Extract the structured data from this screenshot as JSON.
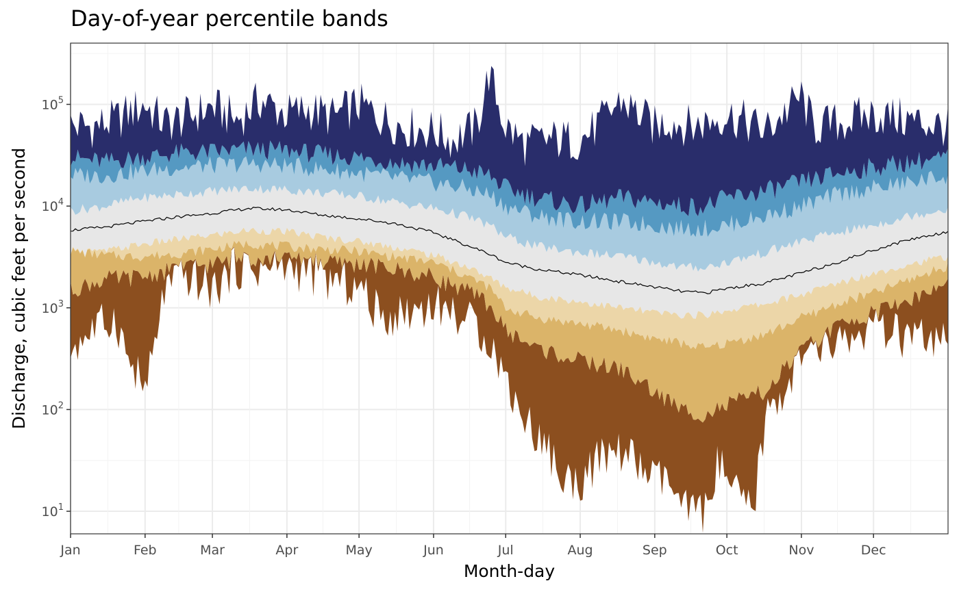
{
  "chart_data": {
    "type": "area",
    "title": "Day-of-year percentile bands",
    "xlabel": "Month-day",
    "ylabel": "Discharge, cubic feet per second",
    "yscale": "log10",
    "ylim": [
      6,
      400000
    ],
    "xlim": [
      1,
      366
    ],
    "grid": true,
    "legend": "none",
    "x_ticks": [
      {
        "day": 1,
        "label": "Jan"
      },
      {
        "day": 32,
        "label": "Feb"
      },
      {
        "day": 60,
        "label": "Mar"
      },
      {
        "day": 91,
        "label": "Apr"
      },
      {
        "day": 121,
        "label": "May"
      },
      {
        "day": 152,
        "label": "Jun"
      },
      {
        "day": 182,
        "label": "Jul"
      },
      {
        "day": 213,
        "label": "Aug"
      },
      {
        "day": 244,
        "label": "Sep"
      },
      {
        "day": 274,
        "label": "Oct"
      },
      {
        "day": 305,
        "label": "Nov"
      },
      {
        "day": 335,
        "label": "Dec"
      }
    ],
    "y_ticks": [
      {
        "value": 10,
        "base": "10",
        "exp": "1"
      },
      {
        "value": 100,
        "base": "10",
        "exp": "2"
      },
      {
        "value": 1000,
        "base": "10",
        "exp": "3"
      },
      {
        "value": 10000,
        "base": "10",
        "exp": "4"
      },
      {
        "value": 100000,
        "base": "10",
        "exp": "5"
      }
    ],
    "band_colors": {
      "min_p05": "#8c4f1f",
      "p05_p10": "#dbb469",
      "p10_p25": "#ecd6a8",
      "p25_p75": "#e7e7e7",
      "p75_p90": "#a8cbe0",
      "p90_p95": "#5599c2",
      "p95_max": "#292d6b"
    },
    "median_color": "#000000",
    "series": [
      {
        "name": "Max",
        "day": [
          1,
          10,
          20,
          30,
          32,
          40,
          50,
          60,
          70,
          80,
          91,
          100,
          110,
          121,
          130,
          140,
          152,
          160,
          170,
          175,
          182,
          190,
          200,
          213,
          220,
          230,
          244,
          250,
          260,
          274,
          280,
          290,
          305,
          310,
          320,
          335,
          350,
          366
        ],
        "values": [
          62000,
          60000,
          70000,
          95000,
          100000,
          65000,
          75000,
          95000,
          70000,
          110000,
          80000,
          90000,
          75000,
          100000,
          75000,
          60000,
          55000,
          45000,
          60000,
          200000,
          60000,
          40000,
          45000,
          45000,
          60000,
          110000,
          60000,
          70000,
          60000,
          80000,
          70000,
          55000,
          120000,
          60000,
          65000,
          80000,
          70000,
          60000
        ]
      },
      {
        "name": "P95",
        "day": [
          1,
          15,
          30,
          45,
          60,
          75,
          91,
          105,
          121,
          135,
          152,
          165,
          175,
          182,
          195,
          213,
          230,
          244,
          255,
          265,
          274,
          290,
          305,
          320,
          335,
          350,
          366
        ],
        "values": [
          30000,
          27000,
          30000,
          33000,
          34000,
          36000,
          35000,
          32000,
          30000,
          27000,
          25000,
          23000,
          20000,
          15000,
          12000,
          10000,
          12000,
          11000,
          10000,
          10000,
          12000,
          14000,
          17000,
          21000,
          24000,
          27000,
          30000
        ]
      },
      {
        "name": "P90",
        "day": [
          1,
          15,
          30,
          45,
          60,
          75,
          91,
          105,
          121,
          135,
          152,
          165,
          175,
          182,
          195,
          213,
          230,
          244,
          255,
          265,
          274,
          290,
          305,
          320,
          335,
          350,
          366
        ],
        "values": [
          20000,
          20000,
          22000,
          24000,
          25000,
          26000,
          25000,
          23000,
          21000,
          19000,
          17000,
          15000,
          13000,
          10000,
          8000,
          7000,
          7000,
          6500,
          6000,
          6000,
          6500,
          8000,
          10000,
          13000,
          15000,
          17000,
          20000
        ]
      },
      {
        "name": "P75",
        "day": [
          1,
          15,
          30,
          45,
          60,
          75,
          91,
          105,
          121,
          135,
          152,
          165,
          175,
          182,
          195,
          213,
          230,
          244,
          255,
          265,
          274,
          290,
          305,
          320,
          335,
          350,
          366
        ],
        "values": [
          9000,
          10000,
          12000,
          13000,
          14000,
          15000,
          14500,
          13500,
          12500,
          11000,
          9500,
          8000,
          6500,
          5000,
          4000,
          3500,
          3200,
          2800,
          2500,
          2500,
          2800,
          3500,
          4500,
          5500,
          6500,
          8000,
          9500
        ]
      },
      {
        "name": "Median",
        "day": [
          1,
          15,
          30,
          45,
          60,
          75,
          91,
          105,
          121,
          135,
          152,
          165,
          175,
          182,
          195,
          213,
          230,
          244,
          255,
          265,
          274,
          290,
          305,
          320,
          335,
          350,
          366
        ],
        "values": [
          5800,
          6200,
          7000,
          7800,
          8500,
          9500,
          9200,
          8200,
          7500,
          6800,
          5500,
          4200,
          3400,
          2800,
          2400,
          2100,
          1800,
          1600,
          1450,
          1400,
          1550,
          1750,
          2200,
          2800,
          3700,
          4700,
          5600
        ]
      },
      {
        "name": "P25",
        "day": [
          1,
          15,
          30,
          45,
          60,
          75,
          91,
          105,
          121,
          135,
          152,
          165,
          175,
          182,
          195,
          213,
          230,
          244,
          255,
          265,
          274,
          290,
          305,
          320,
          335,
          350,
          366
        ],
        "values": [
          3200,
          3600,
          4200,
          4700,
          5200,
          5800,
          5600,
          5000,
          4500,
          4000,
          3300,
          2600,
          2000,
          1600,
          1300,
          1150,
          1000,
          900,
          850,
          850,
          950,
          1100,
          1350,
          1750,
          2200,
          2700,
          3200
        ]
      },
      {
        "name": "P10",
        "day": [
          1,
          15,
          30,
          45,
          60,
          75,
          91,
          105,
          121,
          135,
          152,
          165,
          175,
          182,
          195,
          213,
          230,
          244,
          255,
          265,
          274,
          290,
          305,
          320,
          335,
          350,
          366
        ],
        "values": [
          3600,
          3300,
          3200,
          3400,
          3800,
          4300,
          4000,
          3800,
          3600,
          3200,
          2800,
          2100,
          1600,
          1000,
          800,
          700,
          600,
          500,
          450,
          400,
          450,
          550,
          800,
          1100,
          1400,
          1900,
          2600
        ]
      },
      {
        "name": "P05",
        "day": [
          1,
          15,
          30,
          45,
          60,
          75,
          91,
          105,
          121,
          135,
          152,
          165,
          175,
          182,
          195,
          213,
          230,
          244,
          255,
          265,
          274,
          290,
          305,
          320,
          335,
          350,
          366
        ],
        "values": [
          1500,
          1900,
          2000,
          2400,
          2700,
          3100,
          3000,
          2800,
          2700,
          2400,
          2000,
          1500,
          1100,
          600,
          400,
          300,
          250,
          150,
          100,
          90,
          110,
          150,
          380,
          650,
          900,
          1200,
          1700
        ]
      },
      {
        "name": "Min",
        "day": [
          1,
          10,
          20,
          25,
          30,
          32,
          35,
          40,
          45,
          50,
          60,
          70,
          80,
          91,
          100,
          110,
          121,
          130,
          140,
          152,
          160,
          170,
          175,
          182,
          190,
          200,
          205,
          213,
          220,
          230,
          244,
          250,
          255,
          265,
          270,
          274,
          280,
          285,
          290,
          305,
          320,
          335,
          350,
          366
        ],
        "values": [
          400,
          600,
          800,
          300,
          200,
          150,
          300,
          1500,
          1800,
          2000,
          1500,
          2500,
          2400,
          2500,
          2200,
          1800,
          1600,
          800,
          900,
          1100,
          900,
          650,
          500,
          200,
          80,
          40,
          20,
          20,
          30,
          40,
          20,
          20,
          10,
          10,
          30,
          20,
          12,
          10,
          80,
          300,
          450,
          600,
          500,
          420
        ]
      }
    ]
  }
}
